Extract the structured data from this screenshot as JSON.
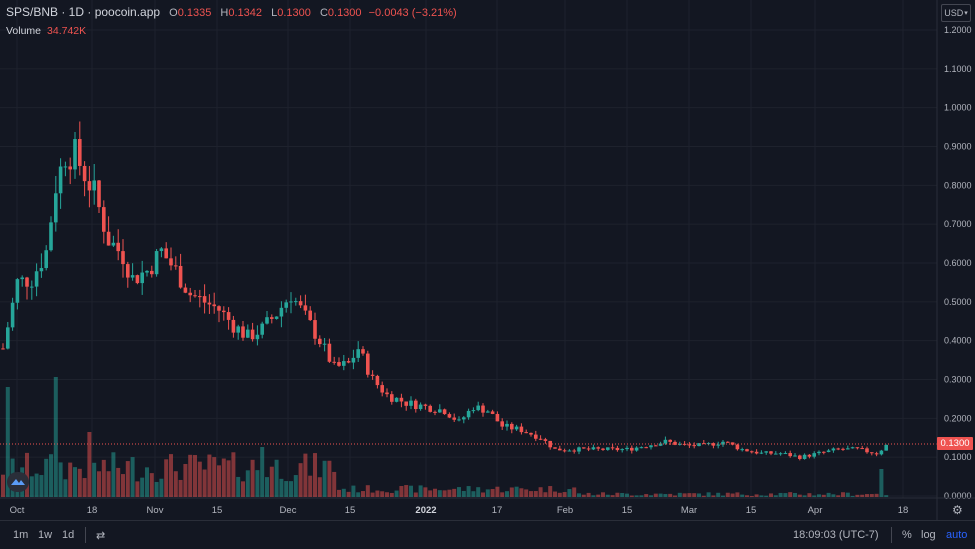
{
  "legend": {
    "symbol": "SPS/BNB · 1D · poocoin.app",
    "open_label": "O",
    "open": "0.1335",
    "high_label": "H",
    "high": "0.1342",
    "low_label": "L",
    "low": "0.1300",
    "close_label": "C",
    "close": "0.1300",
    "change": "−0.0043 (−3.21%)"
  },
  "volume": {
    "label": "Volume",
    "value": "34.742K"
  },
  "currency": "USD",
  "last_price": "0.1300",
  "price_axis": [
    "1.2000",
    "1.1000",
    "1.0000",
    "0.9000",
    "0.8000",
    "0.7000",
    "0.6000",
    "0.5000",
    "0.4000",
    "0.3000",
    "0.2000",
    "0.1000",
    "0.0000"
  ],
  "time_axis": [
    "Oct",
    "18",
    "Nov",
    "15",
    "Dec",
    "15",
    "2022",
    "17",
    "Feb",
    "15",
    "Mar",
    "15",
    "Apr",
    "18"
  ],
  "bottom": {
    "ranges": [
      "1m",
      "1w",
      "1d"
    ],
    "time": "18:09:03 (UTC-7)",
    "percent": "%",
    "log": "log",
    "auto": "auto"
  },
  "colors": {
    "up": "#26a69a",
    "down": "#ef5350",
    "bg": "#131722",
    "grid": "#1e222d",
    "accent": "#2962ff"
  },
  "icons": {
    "compare": "compare-icon",
    "settings": "gear-icon",
    "logo": "tradingview-logo-icon"
  },
  "chart_data": {
    "type": "candlestick",
    "y_range": [
      0,
      1.2
    ],
    "x_range_days": [
      "Oct",
      "Apr"
    ],
    "close_trend": [
      [
        0,
        0.38
      ],
      [
        3,
        0.55
      ],
      [
        6,
        0.56
      ],
      [
        9,
        0.63
      ],
      [
        11,
        0.8
      ],
      [
        13,
        0.88
      ],
      [
        15,
        0.88
      ],
      [
        17,
        0.83
      ],
      [
        19,
        0.78
      ],
      [
        22,
        0.66
      ],
      [
        25,
        0.62
      ],
      [
        27,
        0.56
      ],
      [
        30,
        0.58
      ],
      [
        33,
        0.63
      ],
      [
        36,
        0.58
      ],
      [
        39,
        0.52
      ],
      [
        42,
        0.5
      ],
      [
        45,
        0.48
      ],
      [
        48,
        0.44
      ],
      [
        51,
        0.41
      ],
      [
        54,
        0.43
      ],
      [
        57,
        0.47
      ],
      [
        60,
        0.52
      ],
      [
        63,
        0.46
      ],
      [
        66,
        0.4
      ],
      [
        69,
        0.33
      ],
      [
        72,
        0.34
      ],
      [
        74,
        0.38
      ],
      [
        77,
        0.3
      ],
      [
        80,
        0.26
      ],
      [
        84,
        0.24
      ],
      [
        88,
        0.23
      ],
      [
        92,
        0.22
      ],
      [
        95,
        0.19
      ],
      [
        98,
        0.23
      ],
      [
        101,
        0.22
      ],
      [
        104,
        0.18
      ],
      [
        108,
        0.17
      ],
      [
        112,
        0.15
      ],
      [
        115,
        0.12
      ],
      [
        120,
        0.12
      ],
      [
        125,
        0.12
      ],
      [
        130,
        0.12
      ],
      [
        134,
        0.13
      ],
      [
        138,
        0.14
      ],
      [
        142,
        0.13
      ],
      [
        146,
        0.13
      ],
      [
        150,
        0.14
      ],
      [
        154,
        0.12
      ],
      [
        158,
        0.11
      ],
      [
        162,
        0.11
      ],
      [
        166,
        0.1
      ],
      [
        170,
        0.11
      ],
      [
        174,
        0.12
      ],
      [
        178,
        0.12
      ],
      [
        182,
        0.11
      ],
      [
        184,
        0.13
      ]
    ],
    "volume_max": "approx"
  }
}
